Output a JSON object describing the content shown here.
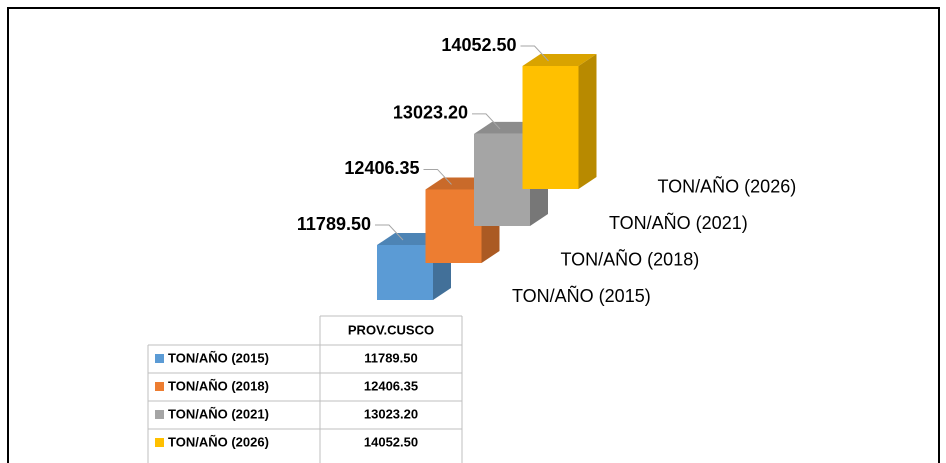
{
  "chart_data": {
    "type": "bar",
    "categories": [
      "PROV.CUSCO"
    ],
    "series": [
      {
        "name": "TON/AÑO (2015)",
        "color": "#5b9bd5",
        "values": [
          11789.5
        ],
        "value_labels": [
          "11789.50"
        ]
      },
      {
        "name": "TON/AÑO (2018)",
        "color": "#ed7d31",
        "values": [
          12406.35
        ],
        "value_labels": [
          "12406.35"
        ]
      },
      {
        "name": "TON/AÑO (2021)",
        "color": "#a5a5a5",
        "values": [
          13023.2
        ],
        "value_labels": [
          "13023.20"
        ]
      },
      {
        "name": "TON/AÑO (2026)",
        "color": "#ffc000",
        "values": [
          14052.5
        ],
        "value_labels": [
          "14052.50"
        ]
      }
    ]
  }
}
